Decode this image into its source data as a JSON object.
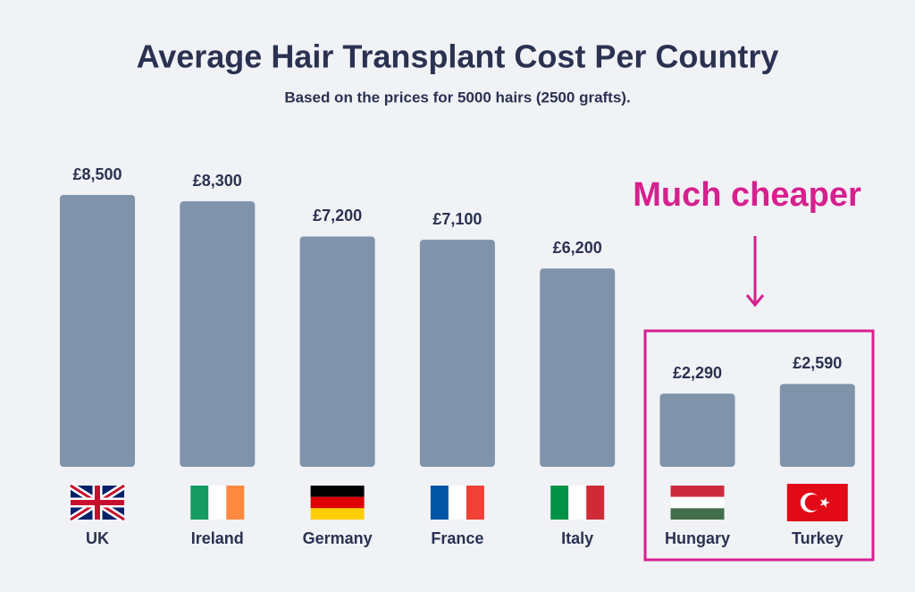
{
  "chart_data": {
    "type": "bar",
    "title": "Average Hair Transplant Cost Per Country",
    "subtitle": "Based on the prices for 5000 hairs (2500 grafts).",
    "annotation": "Much cheaper",
    "categories": [
      "UK",
      "Ireland",
      "Germany",
      "France",
      "Italy",
      "Hungary",
      "Turkey"
    ],
    "values": [
      8500,
      8300,
      7200,
      7100,
      6200,
      2290,
      2590
    ],
    "value_labels": [
      "£8,500",
      "£8,300",
      "£7,200",
      "£7,100",
      "£6,200",
      "£2,290",
      "£2,590"
    ],
    "color": "#7f93ab"
  }
}
